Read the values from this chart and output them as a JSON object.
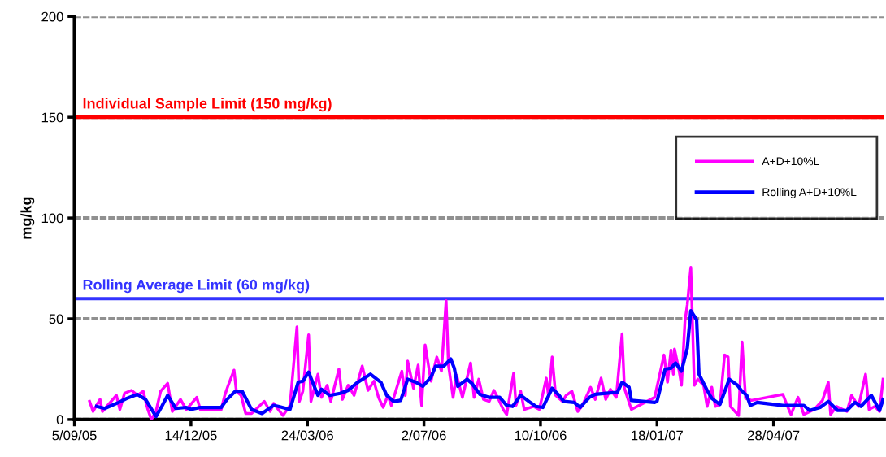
{
  "chart_data": {
    "type": "line",
    "ylabel": "mg/kg",
    "xlim": [
      "2005-09-05",
      "2007-08-01"
    ],
    "xticks": [
      {
        "value": "2005-09-05",
        "label": "5/09/05"
      },
      {
        "value": "2005-12-14",
        "label": "14/12/05"
      },
      {
        "value": "2006-03-24",
        "label": "24/03/06"
      },
      {
        "value": "2006-07-02",
        "label": "2/07/06"
      },
      {
        "value": "2006-10-10",
        "label": "10/10/06"
      },
      {
        "value": "2007-01-18",
        "label": "18/01/07"
      },
      {
        "value": "2007-04-28",
        "label": "28/04/07"
      }
    ],
    "ylim": [
      0,
      200
    ],
    "yticks": [
      0,
      50,
      100,
      150,
      200
    ],
    "grid": "y",
    "legend": "center right",
    "marker": "none",
    "line_style": "solid",
    "ref_lines": [
      {
        "axis": "y",
        "value": 150,
        "label": "Individual Sample Limit (150 mg/kg)",
        "color": "#ff0000"
      },
      {
        "axis": "y",
        "value": 60,
        "label": "Rolling Average Limit (60 mg/kg)",
        "color": "#3333ff"
      }
    ],
    "series": [
      {
        "name": "A+D+10%L",
        "color": "#ff00ff",
        "x": [
          "2005-09-18",
          "2005-09-21",
          "2005-09-27",
          "2005-09-29",
          "2005-10-11",
          "2005-10-14",
          "2005-10-18",
          "2005-10-24",
          "2005-10-29",
          "2005-11-03",
          "2005-11-07",
          "2005-11-10",
          "2005-11-14",
          "2005-11-18",
          "2005-11-24",
          "2005-11-28",
          "2005-12-05",
          "2005-12-10",
          "2005-12-19",
          "2005-12-22",
          "2006-01-09",
          "2006-01-12",
          "2006-01-15",
          "2006-01-20",
          "2006-01-22",
          "2006-01-26",
          "2006-01-30",
          "2006-02-04",
          "2006-02-15",
          "2006-02-20",
          "2006-02-23",
          "2006-03-03",
          "2006-03-09",
          "2006-03-15",
          "2006-03-17",
          "2006-03-20",
          "2006-03-25",
          "2006-03-27",
          "2006-04-02",
          "2006-04-05",
          "2006-04-10",
          "2006-04-13",
          "2006-04-20",
          "2006-04-23",
          "2006-04-28",
          "2006-05-03",
          "2006-05-10",
          "2006-05-15",
          "2006-05-20",
          "2006-05-24",
          "2006-05-28",
          "2006-06-01",
          "2006-06-04",
          "2006-06-13",
          "2006-06-16",
          "2006-06-18",
          "2006-06-23",
          "2006-06-27",
          "2006-06-30",
          "2006-07-03",
          "2006-07-08",
          "2006-07-13",
          "2006-07-17",
          "2006-07-21",
          "2006-07-23",
          "2006-07-27",
          "2006-07-30",
          "2006-08-04",
          "2006-08-11",
          "2006-08-14",
          "2006-08-18",
          "2006-08-22",
          "2006-08-27",
          "2006-08-31",
          "2006-09-04",
          "2006-09-08",
          "2006-09-11",
          "2006-09-17",
          "2006-09-19",
          "2006-09-23",
          "2006-09-26",
          "2006-10-04",
          "2006-10-09",
          "2006-10-15",
          "2006-10-17",
          "2006-10-20",
          "2006-10-23",
          "2006-10-29",
          "2006-11-01",
          "2006-11-06",
          "2006-11-11",
          "2006-11-15",
          "2006-11-22",
          "2006-11-26",
          "2006-12-01",
          "2006-12-05",
          "2006-12-09",
          "2006-12-14",
          "2006-12-19",
          "2006-12-21",
          "2006-12-27",
          "2007-01-16",
          "2007-01-24",
          "2007-01-27",
          "2007-01-30",
          "2007-02-01",
          "2007-02-02",
          "2007-02-06",
          "2007-02-08",
          "2007-02-11",
          "2007-02-13",
          "2007-02-16",
          "2007-02-19",
          "2007-02-22",
          "2007-02-27",
          "2007-03-02",
          "2007-03-06",
          "2007-03-09",
          "2007-03-13",
          "2007-03-17",
          "2007-03-20",
          "2007-03-22",
          "2007-03-29",
          "2007-04-01",
          "2007-04-04",
          "2007-04-09",
          "2007-05-06",
          "2007-05-10",
          "2007-05-13",
          "2007-05-19",
          "2007-05-24",
          "2007-06-02",
          "2007-06-09",
          "2007-06-14",
          "2007-06-16",
          "2007-06-21",
          "2007-06-30",
          "2007-07-04",
          "2007-07-10",
          "2007-07-16",
          "2007-07-19",
          "2007-07-24",
          "2007-07-28",
          "2007-07-31"
        ],
        "values": [
          9,
          4,
          10,
          4,
          12,
          5,
          13,
          14.5,
          12,
          14,
          5,
          0,
          4,
          14,
          18,
          4,
          10,
          5,
          11,
          5,
          5,
          12,
          17,
          24.5,
          14,
          12,
          3,
          3,
          9,
          4,
          8,
          2,
          7,
          46,
          9,
          14,
          42,
          9,
          22.5,
          11,
          17,
          9,
          25,
          10,
          17,
          12,
          26.5,
          14.5,
          19,
          11,
          6,
          12,
          7,
          24,
          12,
          29,
          15.5,
          27,
          7,
          37,
          19,
          31,
          24,
          59,
          27,
          11,
          22,
          11,
          28,
          11,
          20,
          10,
          9,
          14.5,
          10,
          5,
          2.5,
          23,
          7,
          14,
          5,
          6.5,
          5,
          20.5,
          11,
          31,
          12,
          9,
          12,
          14,
          4,
          7,
          16,
          10,
          20.5,
          10,
          15,
          11,
          42.5,
          15.5,
          5,
          11,
          32,
          18.5,
          34.5,
          22.5,
          35,
          24,
          17,
          49,
          57,
          75.5,
          17,
          20,
          17,
          6.5,
          16,
          6.5,
          7.5,
          32,
          31,
          6.5,
          2,
          38.5,
          10.5,
          9.5,
          12.5,
          6.5,
          2.5,
          11,
          2.5,
          5,
          9.5,
          18.5,
          2.5,
          6.5,
          4,
          12,
          6.5,
          22.5,
          5,
          6.5,
          4,
          20
        ]
      },
      {
        "name": "Rolling A+D+10%L",
        "color": "#0000ff",
        "x": [
          "2005-09-24",
          "2005-10-01",
          "2005-10-13",
          "2005-10-20",
          "2005-10-29",
          "2005-11-05",
          "2005-11-14",
          "2005-11-19",
          "2005-11-24",
          "2005-12-01",
          "2005-12-10",
          "2005-12-14",
          "2005-12-22",
          "2006-01-09",
          "2006-01-14",
          "2006-01-21",
          "2006-01-27",
          "2006-02-04",
          "2006-02-13",
          "2006-02-23",
          "2006-02-27",
          "2006-03-09",
          "2006-03-16",
          "2006-03-20",
          "2006-03-25",
          "2006-04-02",
          "2006-04-05",
          "2006-04-12",
          "2006-04-21",
          "2006-04-28",
          "2006-05-05",
          "2006-05-17",
          "2006-05-26",
          "2006-05-31",
          "2006-06-06",
          "2006-06-12",
          "2006-06-18",
          "2006-06-25",
          "2006-07-01",
          "2006-07-08",
          "2006-07-12",
          "2006-07-19",
          "2006-07-25",
          "2006-07-28",
          "2006-07-31",
          "2006-08-08",
          "2006-08-12",
          "2006-08-19",
          "2006-08-27",
          "2006-09-05",
          "2006-09-11",
          "2006-09-16",
          "2006-09-23",
          "2006-09-30",
          "2006-10-06",
          "2006-10-12",
          "2006-10-20",
          "2006-10-26",
          "2006-10-30",
          "2006-11-08",
          "2006-11-13",
          "2006-11-21",
          "2006-11-26",
          "2006-12-05",
          "2006-12-15",
          "2006-12-19",
          "2006-12-25",
          "2006-12-27",
          "2007-01-16",
          "2007-01-18",
          "2007-01-25",
          "2007-01-30",
          "2007-02-03",
          "2007-02-08",
          "2007-02-13",
          "2007-02-16",
          "2007-02-21",
          "2007-02-23",
          "2007-03-02",
          "2007-03-06",
          "2007-03-13",
          "2007-03-21",
          "2007-03-28",
          "2007-04-01",
          "2007-04-05",
          "2007-04-08",
          "2007-04-14",
          "2007-05-06",
          "2007-05-24",
          "2007-05-29",
          "2007-06-07",
          "2007-06-14",
          "2007-06-22",
          "2007-06-30",
          "2007-07-07",
          "2007-07-12",
          "2007-07-21",
          "2007-07-28",
          "2007-07-31"
        ],
        "values": [
          6.5,
          5.5,
          8.5,
          10.5,
          12.5,
          10,
          1.5,
          6.5,
          12,
          5.5,
          6,
          5,
          6,
          6,
          10,
          14,
          14,
          5,
          3,
          7,
          6.5,
          5,
          18.5,
          19,
          23.5,
          12,
          15,
          12,
          13,
          14.5,
          18,
          22.5,
          18.5,
          12,
          9,
          9.5,
          20,
          18.5,
          16.5,
          21,
          26.5,
          26.5,
          30,
          25.5,
          16.5,
          20,
          18,
          12.5,
          11,
          11,
          7,
          6.5,
          12,
          9,
          6.5,
          6,
          15.5,
          12,
          9,
          8.5,
          6,
          11,
          12.5,
          13,
          13.5,
          18.5,
          16,
          9.5,
          8.5,
          9,
          25,
          25.5,
          28,
          24,
          35.5,
          54,
          49.5,
          22.5,
          14.5,
          10.5,
          7.5,
          20,
          17,
          14,
          12,
          7,
          8.5,
          7,
          7,
          4.5,
          6,
          9,
          4.5,
          4.5,
          8.5,
          6.5,
          12,
          4.5,
          10
        ]
      }
    ]
  }
}
